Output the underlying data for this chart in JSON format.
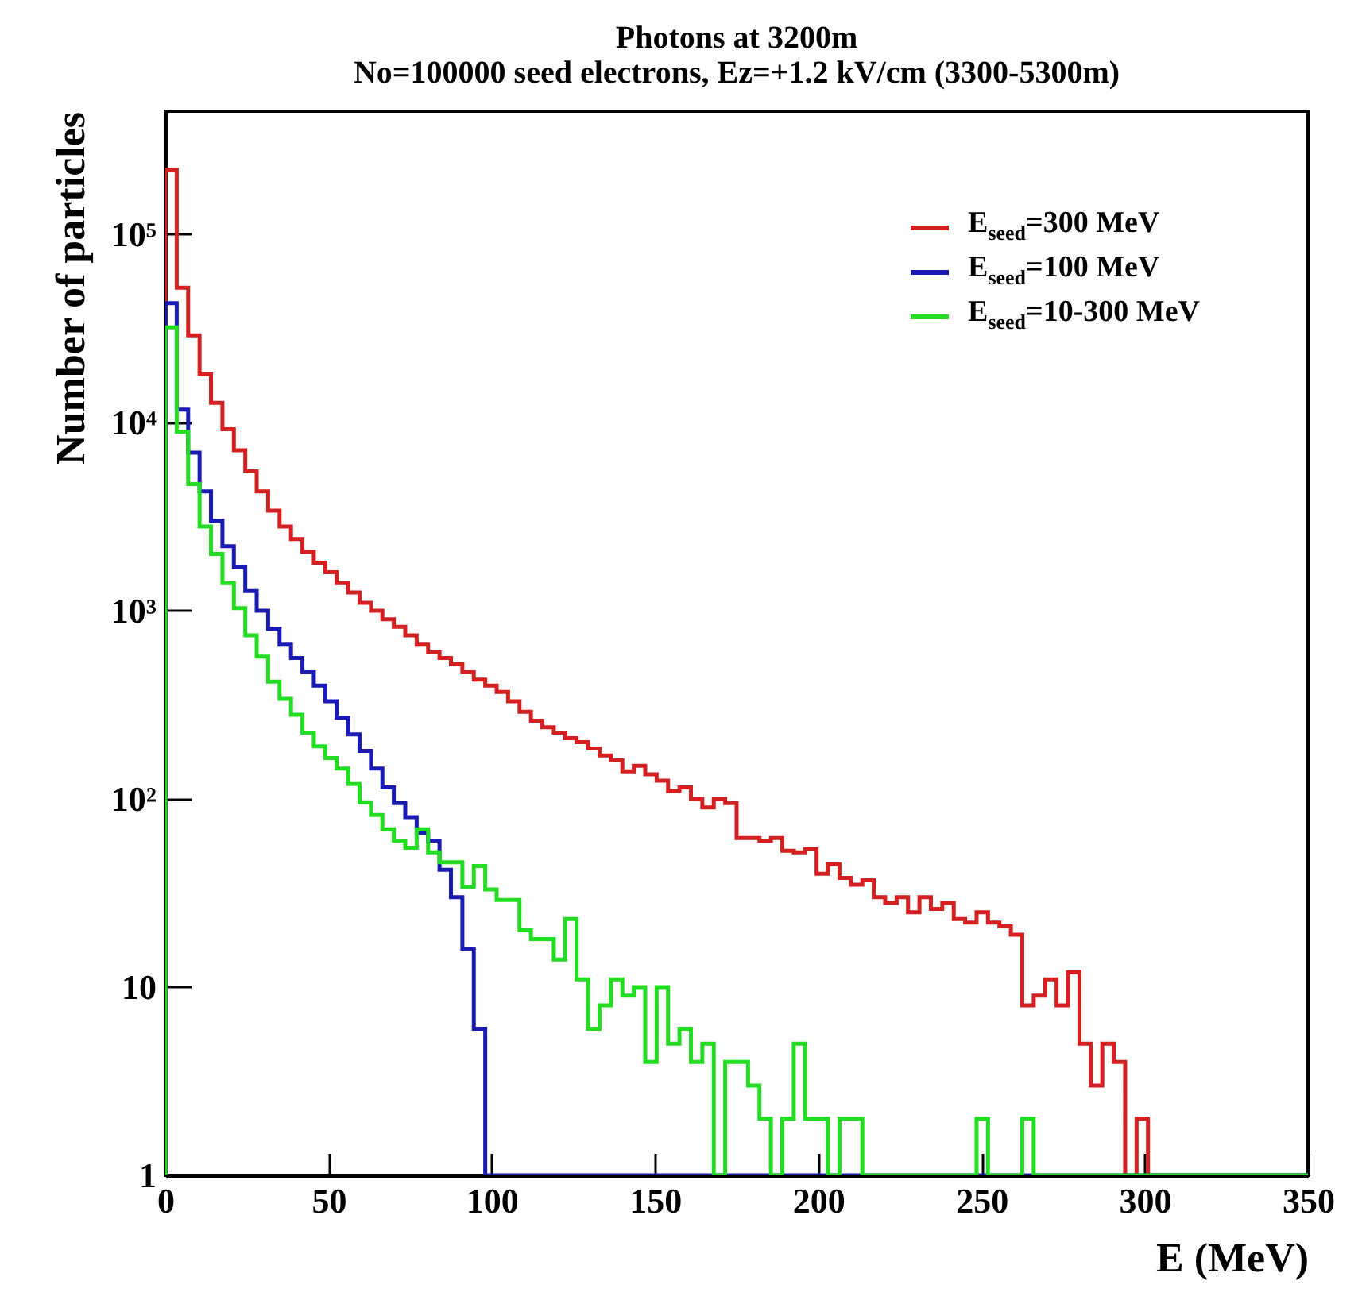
{
  "chart_data": {
    "type": "histogram",
    "title": "Photons at 3200m",
    "subtitle": "No=100000 seed electrons, Ez=+1.2 kV/cm (3300-5300m)",
    "xlabel": "E (MeV)",
    "ylabel": "Number of particles",
    "bins": [
      0,
      3.5,
      7,
      10.5,
      14,
      17.5,
      21,
      24.5,
      28,
      31.5,
      35,
      38.5,
      42,
      45.5,
      49,
      52.5,
      56,
      59.5,
      63,
      66.5,
      70,
      73.5,
      77,
      80.5,
      84,
      87.5,
      91,
      94.5,
      98,
      101.5,
      105,
      108.5,
      112,
      115.5,
      119,
      122.5,
      126,
      129.5,
      133,
      136.5,
      140,
      143.5,
      147,
      150.5,
      154,
      157.5,
      161,
      164.5,
      168,
      171.5,
      175,
      178.5,
      182,
      185.5,
      189,
      192.5,
      196,
      199.5,
      203,
      206.5,
      210,
      213.5,
      217,
      220.5,
      224,
      227.5,
      231,
      234.5,
      238,
      241.5,
      245,
      248.5,
      252,
      255.5,
      259,
      262.5,
      266,
      269.5,
      273,
      276.5,
      280,
      283.5,
      287,
      290.5,
      294,
      297.5,
      301,
      304.5,
      308,
      311.5,
      315,
      318.5,
      322,
      325.5,
      329,
      332.5,
      336,
      339.5,
      343,
      346.5,
      350
    ],
    "series": [
      {
        "name": "E$_{seed}$=300 MeV",
        "color": "#d42020",
        "values": [
          220000,
          52000,
          29000,
          18000,
          12700,
          9200,
          7100,
          5500,
          4300,
          3400,
          2800,
          2400,
          2050,
          1800,
          1600,
          1400,
          1250,
          1100,
          1000,
          900,
          820,
          740,
          660,
          600,
          560,
          520,
          470,
          430,
          400,
          370,
          330,
          290,
          260,
          240,
          225,
          210,
          200,
          185,
          170,
          160,
          140,
          150,
          135,
          125,
          110,
          115,
          100,
          90,
          100,
          95,
          62,
          62,
          60,
          62,
          53,
          52,
          54,
          40,
          45,
          38,
          35,
          37,
          30,
          28,
          30,
          25,
          30,
          26,
          28,
          23,
          22,
          25,
          22,
          21,
          19,
          8,
          9,
          11,
          8,
          12,
          5,
          3,
          5,
          4,
          null,
          2,
          null,
          null,
          null,
          null,
          null,
          null,
          null,
          null,
          null,
          null,
          null,
          null,
          null,
          null
        ]
      },
      {
        "name": "E$_{seed}$=100 MeV",
        "color": "#1a1ab4",
        "values": [
          43000,
          11700,
          6900,
          4300,
          3000,
          2200,
          1700,
          1270,
          1000,
          800,
          660,
          560,
          470,
          400,
          330,
          270,
          220,
          180,
          145,
          115,
          95,
          80,
          66,
          60,
          42,
          30,
          16,
          6,
          null,
          null,
          null,
          null,
          null,
          null,
          null,
          null,
          null,
          null,
          null,
          null,
          null,
          null,
          null,
          null,
          null,
          null,
          null,
          null,
          null,
          null,
          null,
          null,
          null,
          null,
          null,
          null,
          null,
          null,
          null,
          null,
          null,
          null,
          null,
          null,
          null,
          null,
          null,
          null,
          null,
          null,
          null,
          null,
          null,
          null,
          null,
          null,
          null,
          null,
          null,
          null,
          null,
          null,
          null,
          null,
          null,
          null,
          null,
          null,
          null,
          null,
          null,
          null,
          null,
          null,
          null,
          null,
          null,
          null,
          null,
          null
        ]
      },
      {
        "name": "E$_{seed}$=10-300 MeV",
        "color": "#22dd22",
        "values": [
          32000,
          8900,
          4700,
          2800,
          2000,
          1400,
          1030,
          740,
          570,
          420,
          340,
          280,
          225,
          190,
          165,
          145,
          120,
          96,
          82,
          69,
          60,
          55,
          69,
          52,
          46,
          46,
          34,
          44,
          33,
          29,
          29,
          20,
          18,
          18,
          14,
          23,
          11,
          6,
          8,
          11,
          9,
          10,
          4,
          10,
          5,
          6,
          4,
          5,
          null,
          4,
          4,
          3,
          2,
          null,
          2,
          5,
          2,
          2,
          null,
          2,
          2,
          null,
          null,
          null,
          null,
          null,
          null,
          null,
          null,
          null,
          null,
          2,
          null,
          null,
          null,
          2,
          null,
          null,
          null,
          null,
          null,
          null,
          null,
          null,
          null,
          null,
          null,
          null,
          null,
          null,
          null,
          null,
          null,
          null,
          null,
          null,
          null,
          null,
          null,
          null
        ]
      }
    ],
    "xlim": [
      0,
      350
    ],
    "xticks": [
      0,
      50,
      100,
      150,
      200,
      250,
      300,
      350
    ],
    "log": "y",
    "ylim": [
      1,
      450000
    ],
    "yticks": [
      1,
      10,
      {
        "value": 100,
        "label": "10²"
      },
      {
        "value": 1000,
        "label": "10³"
      },
      {
        "value": 10000,
        "label": "10⁴"
      },
      {
        "value": 100000,
        "label": "10⁵"
      }
    ],
    "legend": "top right"
  }
}
